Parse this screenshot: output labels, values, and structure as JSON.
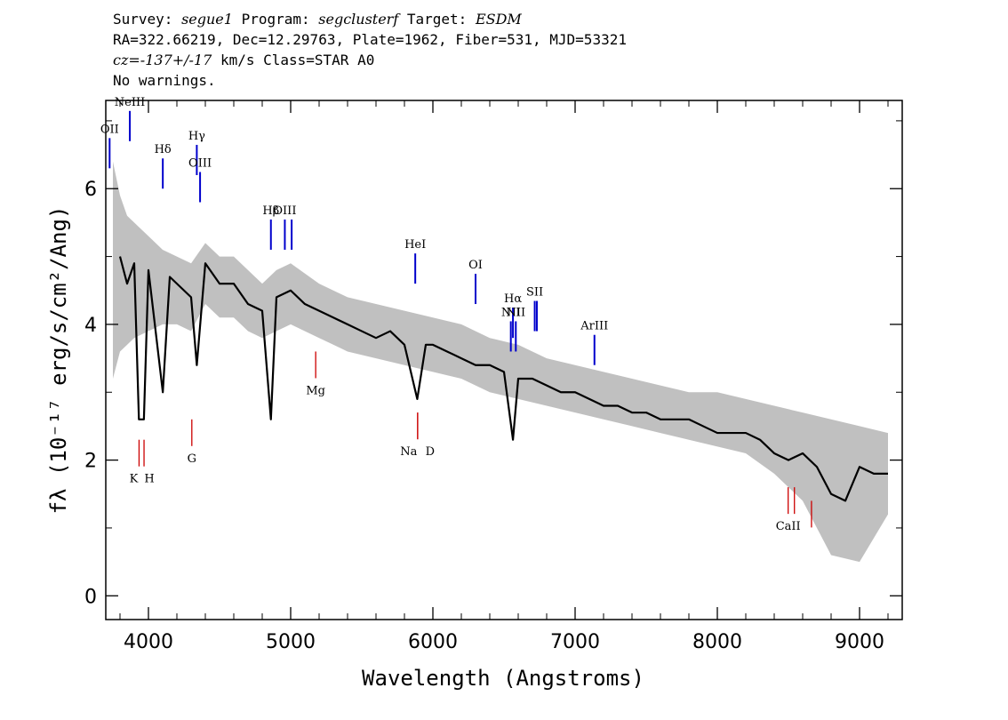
{
  "header": {
    "survey_label": "Survey: ",
    "survey": "segue1",
    "program_label": " Program: ",
    "program": "segclusterf",
    "target_label": " Target: ",
    "target": "ESDM",
    "line2": "RA=322.66219, Dec=12.29763, Plate=1962, Fiber=531, MJD=53321",
    "cz": "cz=-137+/-17",
    "line3_rest": " km/s Class=STAR A0",
    "line4": "No warnings."
  },
  "chart_data": {
    "type": "line",
    "xlabel": "Wavelength (Angstroms)",
    "ylabel": "fλ (10⁻¹⁷ erg/s/cm²/Ang)",
    "xlim": [
      3700,
      9300
    ],
    "ylim": [
      -0.35,
      7.3
    ],
    "grid": false,
    "x_ticks": [
      4000,
      5000,
      6000,
      7000,
      8000,
      9000
    ],
    "y_ticks": [
      0,
      2,
      4,
      6
    ],
    "colors": {
      "spectrum": "#000000",
      "error": "#c0c0c0",
      "emission": "#0000cc",
      "absorption": "#cc0000"
    },
    "series": [
      {
        "role": "spectrum",
        "x": [
          3800,
          3850,
          3900,
          3933,
          3968,
          4000,
          4101,
          4150,
          4200,
          4250,
          4300,
          4340,
          4400,
          4500,
          4600,
          4700,
          4800,
          4861,
          4900,
          5000,
          5100,
          5200,
          5300,
          5400,
          5500,
          5600,
          5700,
          5800,
          5890,
          5950,
          6000,
          6100,
          6200,
          6300,
          6400,
          6500,
          6563,
          6600,
          6700,
          6800,
          6900,
          7000,
          7100,
          7200,
          7300,
          7400,
          7500,
          7600,
          7700,
          7800,
          7900,
          8000,
          8100,
          8200,
          8300,
          8400,
          8500,
          8600,
          8700,
          8800,
          8900,
          9000,
          9100,
          9200
        ],
        "y": [
          5.0,
          4.6,
          4.9,
          2.6,
          2.6,
          4.8,
          3.0,
          4.7,
          4.6,
          4.5,
          4.4,
          3.4,
          4.9,
          4.6,
          4.6,
          4.3,
          4.2,
          2.6,
          4.4,
          4.5,
          4.3,
          4.2,
          4.1,
          4.0,
          3.9,
          3.8,
          3.9,
          3.7,
          2.9,
          3.7,
          3.7,
          3.6,
          3.5,
          3.4,
          3.4,
          3.3,
          2.3,
          3.2,
          3.2,
          3.1,
          3.0,
          3.0,
          2.9,
          2.8,
          2.8,
          2.7,
          2.7,
          2.6,
          2.6,
          2.6,
          2.5,
          2.4,
          2.4,
          2.4,
          2.3,
          2.1,
          2.0,
          2.1,
          1.9,
          1.5,
          1.4,
          1.9,
          1.8,
          1.8
        ]
      }
    ],
    "error_band": {
      "x": [
        3750,
        3800,
        3850,
        3900,
        4000,
        4100,
        4200,
        4300,
        4400,
        4500,
        4600,
        4700,
        4800,
        4900,
        5000,
        5200,
        5400,
        5600,
        5800,
        6000,
        6200,
        6400,
        6600,
        6800,
        7000,
        7200,
        7400,
        7600,
        7800,
        8000,
        8200,
        8400,
        8600,
        8800,
        9000,
        9200
      ],
      "upper": [
        6.4,
        5.9,
        5.6,
        5.5,
        5.3,
        5.1,
        5.0,
        4.9,
        5.2,
        5.0,
        5.0,
        4.8,
        4.6,
        4.8,
        4.9,
        4.6,
        4.4,
        4.3,
        4.2,
        4.1,
        4.0,
        3.8,
        3.7,
        3.5,
        3.4,
        3.3,
        3.2,
        3.1,
        3.0,
        3.0,
        2.9,
        2.8,
        2.7,
        2.6,
        2.5,
        2.4
      ],
      "lower": [
        3.2,
        3.6,
        3.7,
        3.8,
        3.9,
        4.0,
        4.0,
        3.9,
        4.3,
        4.1,
        4.1,
        3.9,
        3.8,
        3.9,
        4.0,
        3.8,
        3.6,
        3.5,
        3.4,
        3.3,
        3.2,
        3.0,
        2.9,
        2.8,
        2.7,
        2.6,
        2.5,
        2.4,
        2.3,
        2.2,
        2.1,
        1.8,
        1.4,
        0.6,
        0.5,
        1.2
      ]
    },
    "emission_lines": [
      {
        "label": "OII",
        "x": 3727,
        "y": 6.3
      },
      {
        "label": "NeIII",
        "x": 3869,
        "y": 6.7
      },
      {
        "label": "Hδ",
        "x": 4101,
        "y": 6.0
      },
      {
        "label": "Hγ",
        "x": 4340,
        "y": 6.2
      },
      {
        "label": "OIII",
        "x": 4363,
        "y": 5.8
      },
      {
        "label": "Hβ",
        "x": 4861,
        "y": 5.1
      },
      {
        "label": "OIII",
        "x": 4959,
        "y": 5.1
      },
      {
        "label": "",
        "x": 5007,
        "y": 5.1
      },
      {
        "label": "HeI",
        "x": 5876,
        "y": 4.6
      },
      {
        "label": "OI",
        "x": 6300,
        "y": 4.3
      },
      {
        "label": "NII",
        "x": 6548,
        "y": 3.6
      },
      {
        "label": "Hα",
        "x": 6563,
        "y": 3.8
      },
      {
        "label": "NII",
        "x": 6583,
        "y": 3.6
      },
      {
        "label": "SII",
        "x": 6716,
        "y": 3.9
      },
      {
        "label": "",
        "x": 6731,
        "y": 3.9
      },
      {
        "label": "ArIII",
        "x": 7136,
        "y": 3.4
      }
    ],
    "absorption_lines": [
      {
        "label": "K",
        "x": 3934,
        "y": 2.3
      },
      {
        "label": "H",
        "x": 3969,
        "y": 2.3
      },
      {
        "label": "G",
        "x": 4305,
        "y": 2.6
      },
      {
        "label": "Mg",
        "x": 5176,
        "y": 3.6
      },
      {
        "label": "Na",
        "x": 5893,
        "y": 2.7
      },
      {
        "label": "D",
        "x": 5893,
        "y": 2.7
      },
      {
        "label": "CaII",
        "x": 8498,
        "y": 1.6
      },
      {
        "label": "",
        "x": 8542,
        "y": 1.6
      },
      {
        "label": "",
        "x": 8662,
        "y": 1.4
      }
    ]
  }
}
